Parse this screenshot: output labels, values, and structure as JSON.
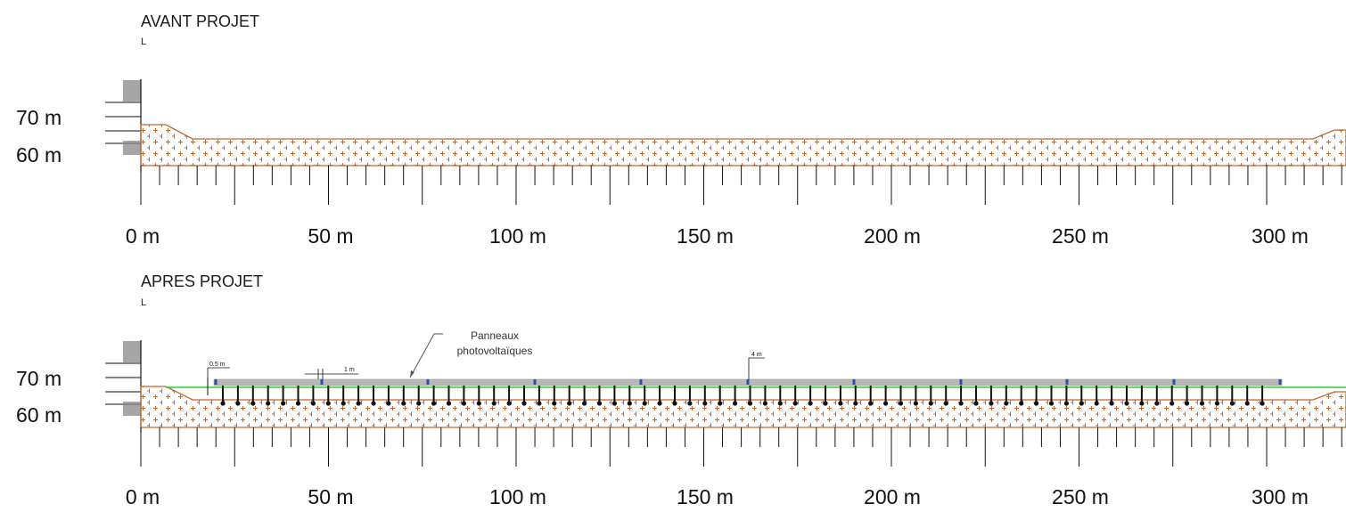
{
  "sections": [
    {
      "title": "AVANT PROJET",
      "marker": "L",
      "elevation_labels": [
        "70 m",
        "60 m"
      ],
      "distance_labels": [
        "0 m",
        "50 m",
        "100 m",
        "150 m",
        "200 m",
        "250 m",
        "300 m"
      ],
      "has_panels": false
    },
    {
      "title": "APRES PROJET",
      "marker": "L",
      "elevation_labels": [
        "70 m",
        "60 m"
      ],
      "distance_labels": [
        "0 m",
        "50 m",
        "100 m",
        "150 m",
        "200 m",
        "250 m",
        "300 m"
      ],
      "has_panels": true
    }
  ],
  "annotations": {
    "panels_label_line1": "Panneaux",
    "panels_label_line2": "photovoltaïques",
    "dim_height": "0.5 m",
    "dim_gap": "1 m",
    "dim_width": "4 m"
  },
  "colors": {
    "terrain": "#c8642c",
    "panel": "#b8b8b8",
    "ground_line": "#33cc33",
    "pile": "#111111",
    "connector": "#2a4fb0"
  }
}
